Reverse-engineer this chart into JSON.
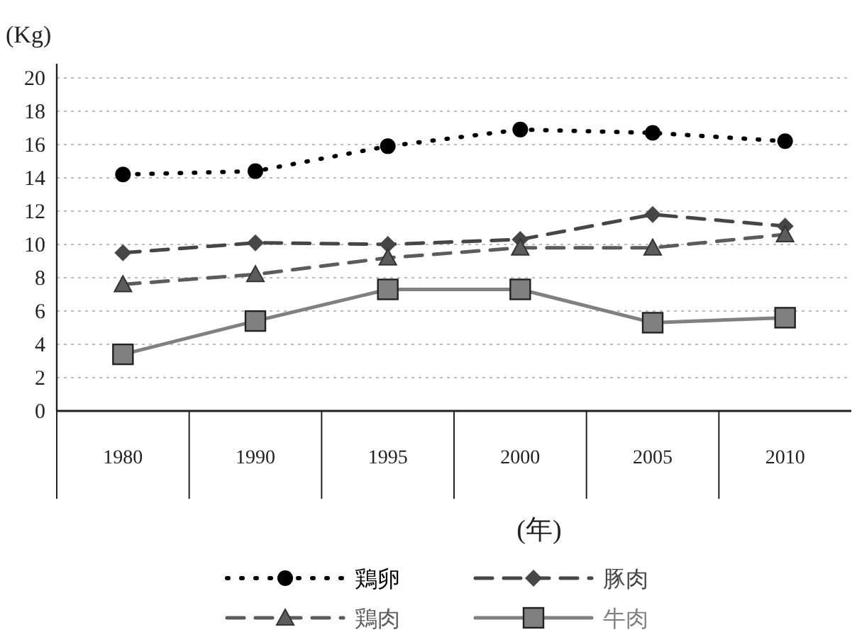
{
  "chart_data": {
    "type": "line",
    "ylabel": "(Kg)",
    "xlabel": "(年)",
    "categories": [
      "1980",
      "1990",
      "1995",
      "2000",
      "2005",
      "2010"
    ],
    "ylim": [
      0,
      20
    ],
    "yticks": [
      0,
      2,
      4,
      6,
      8,
      10,
      12,
      14,
      16,
      18,
      20
    ],
    "grid": "y",
    "legend": "bottom",
    "series": [
      {
        "name": "鶏卵",
        "color": "#000000",
        "marker": "circle",
        "line_style": "dotted",
        "values": [
          14.2,
          14.4,
          15.9,
          16.9,
          16.7,
          16.2
        ]
      },
      {
        "name": "豚肉",
        "color": "#464646",
        "marker": "diamond",
        "line_style": "dashed",
        "values": [
          9.5,
          10.1,
          10.0,
          10.3,
          11.8,
          11.1
        ]
      },
      {
        "name": "鶏肉",
        "color": "#5c5c5c",
        "marker": "triangle",
        "line_style": "dashed",
        "values": [
          7.6,
          8.2,
          9.2,
          9.8,
          9.8,
          10.6
        ]
      },
      {
        "name": "牛肉",
        "color": "#808080",
        "marker": "square",
        "line_style": "solid",
        "values": [
          3.4,
          5.4,
          7.3,
          7.3,
          5.3,
          5.6
        ]
      }
    ]
  }
}
